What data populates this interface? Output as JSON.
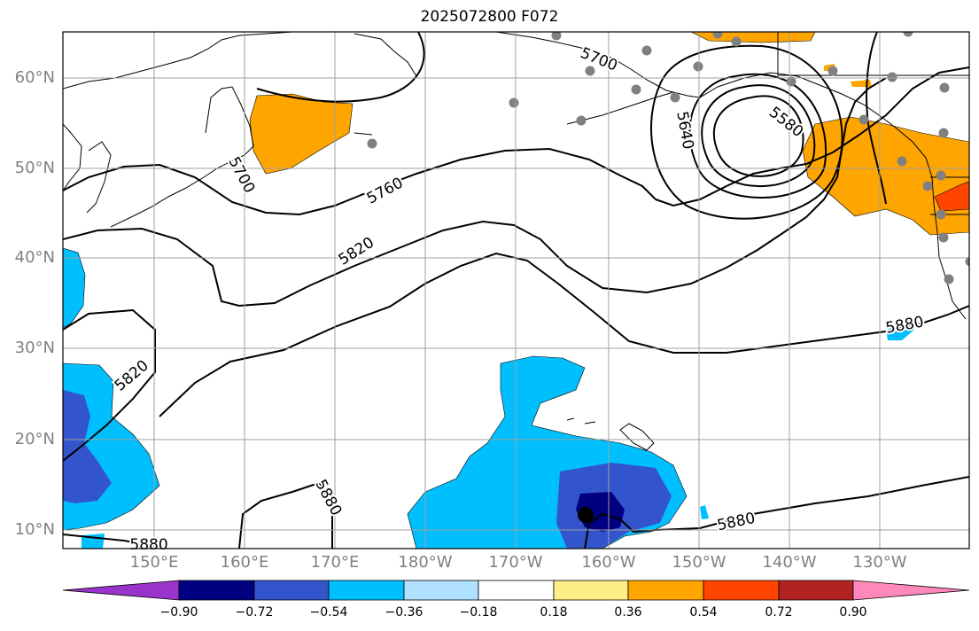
{
  "title": "2025072800 F072",
  "map": {
    "lon_labels": [
      "150°E",
      "160°E",
      "170°E",
      "180°W",
      "170°W",
      "160°W",
      "150°W",
      "140°W",
      "130°W"
    ],
    "lat_labels": [
      "60°N",
      "50°N",
      "40°N",
      "30°N",
      "20°N",
      "10°N"
    ],
    "contour_labels": [
      "5700",
      "5580",
      "5640",
      "5700",
      "5760",
      "5820",
      "5820",
      "5880",
      "5880",
      "5880",
      "5880"
    ],
    "contour_color": "#000000",
    "station_color": "#808080",
    "storm_center_color": "#000000"
  },
  "colorbar": {
    "labels": [
      "−0.90",
      "−0.72",
      "−0.54",
      "−0.36",
      "−0.18",
      "0.18",
      "0.36",
      "0.54",
      "0.72",
      "0.90"
    ],
    "colors": [
      "#9933cc",
      "#000080",
      "#3355cc",
      "#00bfff",
      "#b0e0ff",
      "#ffffff",
      "#ffee88",
      "#ffa500",
      "#ff4500",
      "#b22222",
      "#ff88bb"
    ]
  }
}
